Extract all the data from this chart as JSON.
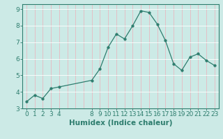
{
  "x": [
    0,
    1,
    2,
    3,
    4,
    8,
    9,
    10,
    11,
    12,
    13,
    14,
    15,
    16,
    17,
    18,
    19,
    20,
    21,
    22,
    23
  ],
  "y": [
    3.4,
    3.8,
    3.6,
    4.2,
    4.3,
    4.7,
    5.4,
    6.7,
    7.5,
    7.2,
    8.0,
    8.9,
    8.8,
    8.1,
    7.1,
    5.7,
    5.3,
    6.1,
    6.3,
    5.9,
    5.6
  ],
  "line_color": "#2e7d6e",
  "marker": "o",
  "marker_size": 2.5,
  "bg_color": "#cceae6",
  "grid_color_v": "#e8b8c0",
  "grid_color_h": "#ffffff",
  "xlabel": "Humidex (Indice chaleur)",
  "xlim": [
    -0.5,
    23.5
  ],
  "ylim": [
    3.0,
    9.3
  ],
  "yticks": [
    3,
    4,
    5,
    6,
    7,
    8,
    9
  ],
  "xticks": [
    0,
    1,
    2,
    3,
    4,
    8,
    9,
    10,
    11,
    12,
    13,
    14,
    15,
    16,
    17,
    18,
    19,
    20,
    21,
    22,
    23
  ],
  "tick_color": "#2e7d6e",
  "label_color": "#2e7d6e",
  "font_size": 6.5,
  "xlabel_fontsize": 7.5
}
